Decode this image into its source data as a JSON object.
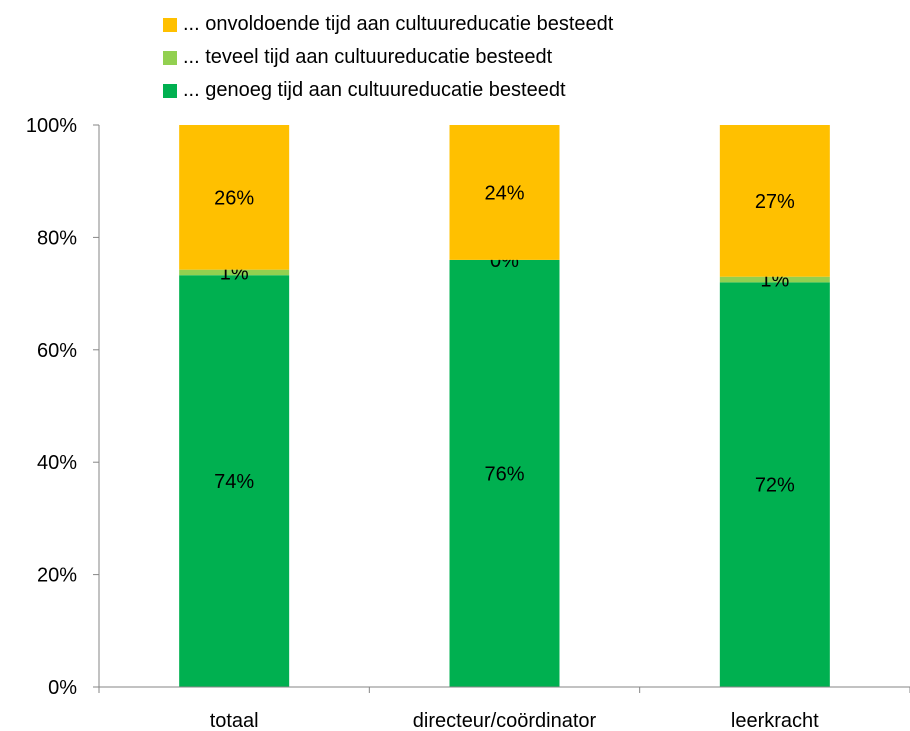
{
  "chart_data": {
    "type": "bar",
    "stacked": true,
    "categories": [
      "totaal",
      "directeur/coördinator",
      "leerkracht"
    ],
    "series": [
      {
        "name": "... genoeg tijd aan cultuureducatie besteedt",
        "color": "#00b050",
        "values": [
          74,
          76,
          72
        ],
        "labels": [
          "74%",
          "76%",
          "72%"
        ]
      },
      {
        "name": "... teveel tijd aan cultuureducatie besteedt",
        "color": "#92d050",
        "values": [
          1,
          0,
          1
        ],
        "labels": [
          "1%",
          "0%",
          "1%"
        ]
      },
      {
        "name": "... onvoldoende tijd aan cultuureducatie besteedt",
        "color": "#ffc000",
        "values": [
          26,
          24,
          27
        ],
        "labels": [
          "26%",
          "24%",
          "27%"
        ]
      }
    ],
    "legend_order": [
      2,
      1,
      0
    ],
    "legend_position": "top",
    "ylim": [
      0,
      100
    ],
    "yticks": [
      "0%",
      "20%",
      "40%",
      "60%",
      "80%",
      "100%"
    ],
    "grid": false
  }
}
